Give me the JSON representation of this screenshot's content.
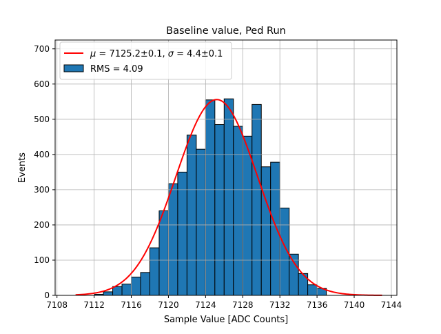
{
  "chart_data": {
    "type": "bar",
    "title": "Baseline value, Ped Run",
    "xlabel": "Sample Value [ADC Counts]",
    "ylabel": "Events",
    "xlim": [
      7107.8,
      7144.6
    ],
    "ylim": [
      0,
      725
    ],
    "grid": true,
    "xticks": [
      7108,
      7112,
      7116,
      7120,
      7124,
      7128,
      7132,
      7136,
      7140,
      7144
    ],
    "yticks": [
      0,
      100,
      200,
      300,
      400,
      500,
      600,
      700
    ],
    "bin_edges": [
      7112,
      7113,
      7114,
      7115,
      7116,
      7117,
      7118,
      7119,
      7120,
      7121,
      7122,
      7123,
      7124,
      7125,
      7126,
      7127,
      7128,
      7129,
      7130,
      7131,
      7132,
      7133,
      7134,
      7135,
      7136,
      7137
    ],
    "values": [
      3,
      10,
      25,
      32,
      52,
      65,
      135,
      240,
      317,
      350,
      455,
      415,
      555,
      485,
      558,
      480,
      452,
      542,
      365,
      378,
      248,
      117,
      62,
      30,
      20,
      5
    ],
    "bar_color": "#1f77b4",
    "bar_edge_color": "#000000",
    "fit_curve": {
      "mu": 7125.2,
      "sigma": 4.4,
      "amplitude": 556,
      "x_range": [
        7110,
        7143
      ],
      "color": "#ff0000"
    },
    "legend": {
      "placement": "top-left",
      "entries": [
        {
          "label_math": "μ",
          "label_text": " = 7125.2±0.1, ",
          "label_math2": "σ",
          "label_text2": " = 4.4±0.1",
          "type": "line",
          "color": "#ff0000"
        },
        {
          "label": "RMS = 4.09",
          "type": "patch",
          "color": "#1f77b4"
        }
      ]
    }
  }
}
